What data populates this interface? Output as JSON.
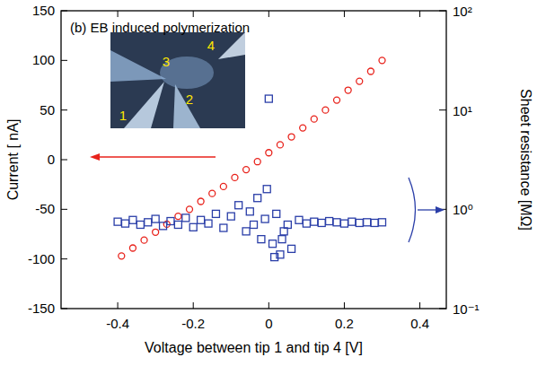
{
  "chart_data": {
    "type": "scatter",
    "title": "(b) EB induced polymerization",
    "inset_labels": [
      "1",
      "2",
      "3",
      "4"
    ],
    "x_label": "Voltage between tip 1 and tip 4 [V]",
    "y_label": "Current [ nA]",
    "y2_label": "Sheet resistance [MΩ]",
    "xlim": [
      -0.55,
      0.47
    ],
    "xticks": [
      -0.4,
      -0.2,
      0,
      0.2,
      0.4
    ],
    "ylim": [
      -150,
      150
    ],
    "yticks": [
      -150,
      -100,
      -50,
      0,
      50,
      100,
      150
    ],
    "y2lim": [
      0.1,
      100
    ],
    "y2ticks": [
      {
        "value": 0.1,
        "label": "10⁻¹"
      },
      {
        "value": 1,
        "label": "10⁰"
      },
      {
        "value": 10,
        "label": "10¹"
      },
      {
        "value": 100,
        "label": "10²"
      }
    ],
    "log": "y2",
    "grid": false,
    "series": [
      {
        "color": "#e8221b",
        "marker": "circle",
        "x": [
          -0.39,
          -0.36,
          -0.33,
          -0.3,
          -0.27,
          -0.24,
          -0.21,
          -0.18,
          -0.15,
          -0.12,
          -0.09,
          -0.06,
          -0.03,
          0,
          0.03,
          0.06,
          0.09,
          0.12,
          0.15,
          0.18,
          0.21,
          0.24,
          0.27,
          0.3
        ],
        "values": [
          -97,
          -89,
          -81,
          -73,
          -65,
          -57,
          -50,
          -42,
          -34,
          -27,
          -18,
          -10,
          -2,
          7,
          15,
          23,
          32,
          41,
          50,
          60,
          70,
          79,
          89,
          100
        ]
      },
      {
        "color": "#2a3ea8",
        "marker": "square",
        "axis": "y2",
        "x": [
          -0.4,
          -0.38,
          -0.36,
          -0.34,
          -0.32,
          -0.3,
          -0.28,
          -0.26,
          -0.24,
          -0.22,
          -0.2,
          -0.18,
          -0.16,
          -0.14,
          -0.12,
          -0.1,
          -0.08,
          -0.06,
          -0.05,
          -0.04,
          -0.03,
          -0.02,
          -0.01,
          0.0,
          0.01,
          0.02,
          0.03,
          0.04,
          0.05,
          0.06,
          0.08,
          0.1,
          0.12,
          0.14,
          0.16,
          0.18,
          0.2,
          0.22,
          0.24,
          0.26,
          0.28,
          0.3,
          -0.005,
          0.015,
          0.035
        ],
        "values": [
          0.75,
          0.72,
          0.78,
          0.7,
          0.74,
          0.8,
          0.68,
          0.76,
          0.7,
          0.82,
          0.66,
          0.78,
          0.72,
          0.9,
          0.65,
          0.85,
          1.1,
          0.6,
          0.95,
          0.7,
          1.3,
          0.5,
          0.8,
          13,
          0.45,
          0.9,
          0.35,
          0.6,
          0.7,
          0.4,
          0.78,
          0.72,
          0.75,
          0.73,
          0.76,
          0.74,
          0.72,
          0.75,
          0.73,
          0.74,
          0.73,
          0.74,
          1.6,
          0.33,
          0.5
        ]
      }
    ]
  }
}
